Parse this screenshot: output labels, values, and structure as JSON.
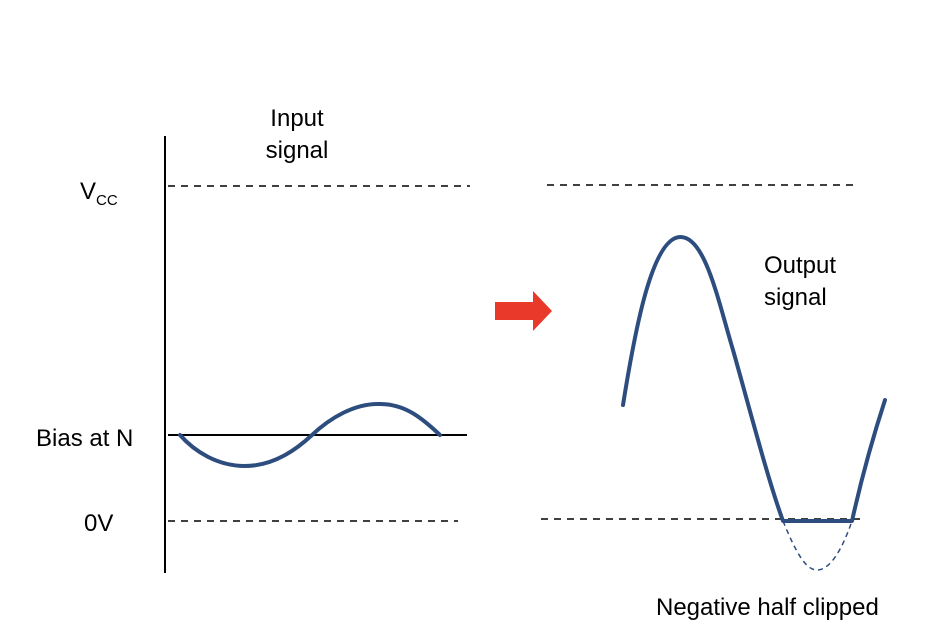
{
  "input_panel": {
    "title_line1": "Input",
    "title_line2": "signal",
    "vcc_label_main": "V",
    "vcc_label_sub": "CC",
    "bias_label": "Bias at N",
    "zero_label": "0V"
  },
  "output_panel": {
    "title_line1": "Output",
    "title_line2": "signal",
    "clip_caption": "Negative half clipped"
  },
  "colors": {
    "signal": "#2e4d7f",
    "arrow": "#e8392a",
    "axis": "#000000"
  }
}
